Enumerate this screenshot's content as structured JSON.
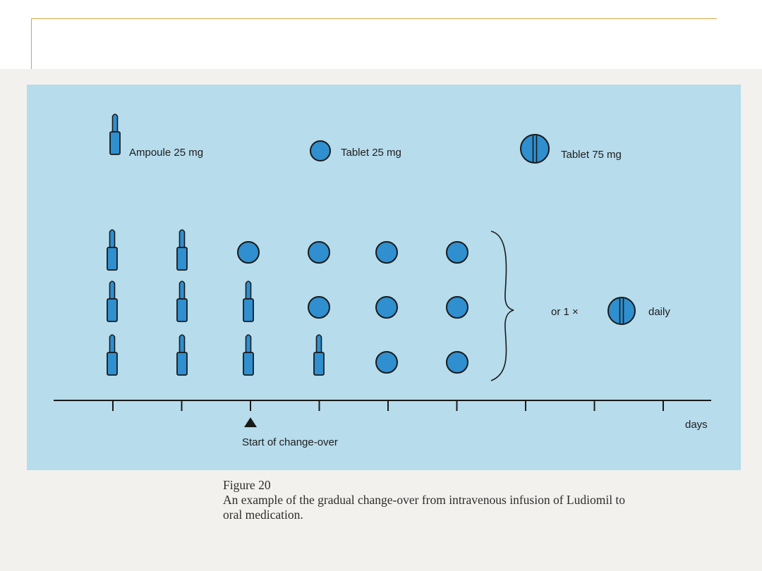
{
  "colors": {
    "panel": "#b7dcec",
    "pill": "#2f8fcf",
    "outline": "#1a1a1a",
    "title_rule": "#d9a441"
  },
  "legend": {
    "ampoule": {
      "label": "Ampoule 25 mg",
      "icon": "ampoule-icon"
    },
    "tablet_small": {
      "label": "Tablet 25 mg",
      "icon": "tablet-icon"
    },
    "tablet_large": {
      "label": "Tablet 75 mg",
      "icon": "scored-tablet-icon"
    }
  },
  "schedule": [
    [
      "ampoule",
      "ampoule",
      "ampoule"
    ],
    [
      "ampoule",
      "ampoule",
      "ampoule"
    ],
    [
      "tablet",
      "ampoule",
      "ampoule"
    ],
    [
      "tablet",
      "tablet",
      "ampoule"
    ],
    [
      "tablet",
      "tablet",
      "tablet"
    ],
    [
      "tablet",
      "tablet",
      "tablet"
    ]
  ],
  "alternative": {
    "prefix": "or 1 ×",
    "suffix": "daily"
  },
  "axis": {
    "label": "days",
    "tick_count": 9,
    "marker_day": 3,
    "marker_label": "Start of change-over"
  },
  "caption": {
    "figure": "Figure 20",
    "line1": "An example of the gradual change-over from intravenous infusion of Ludiomil to",
    "line2": "oral medication."
  }
}
